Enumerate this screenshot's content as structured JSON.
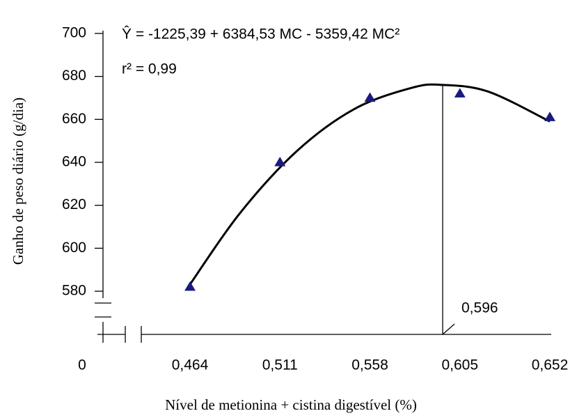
{
  "chart_data": {
    "type": "scatter_fit",
    "equation": "Ŷ = -1225,39 + 6384,53 MC - 5359,42 MC²",
    "r2_text": "r² = 0,99",
    "x_label": "Nível de metionina + cistina digestível (%)",
    "y_label": "Ganho de peso diário (g/dia)",
    "x_origin_label": "0",
    "points": {
      "x": [
        0.464,
        0.511,
        0.558,
        0.605,
        0.652
      ],
      "values": [
        582,
        640,
        670,
        672,
        661
      ],
      "color": "#1a1a80"
    },
    "fit": {
      "x": [
        0.464,
        0.49,
        0.52,
        0.55,
        0.58,
        0.596,
        0.62,
        0.652
      ],
      "values": [
        583.17,
        616.23,
        645.38,
        664.88,
        674.73,
        676.04,
        672.86,
        659.01
      ],
      "color": "#000000"
    },
    "optimum": {
      "value": 0.596,
      "label": "0,596"
    },
    "xlim": [
      0.464,
      0.652
    ],
    "xticks": [
      {
        "value": 0.464,
        "label": "0,464"
      },
      {
        "value": 0.511,
        "label": "0,511"
      },
      {
        "value": 0.558,
        "label": "0,558"
      },
      {
        "value": 0.605,
        "label": "0,605"
      },
      {
        "value": 0.652,
        "label": "0,652"
      }
    ],
    "ylim": [
      580,
      700
    ],
    "yticks": [
      580,
      600,
      620,
      640,
      660,
      680,
      700
    ]
  }
}
